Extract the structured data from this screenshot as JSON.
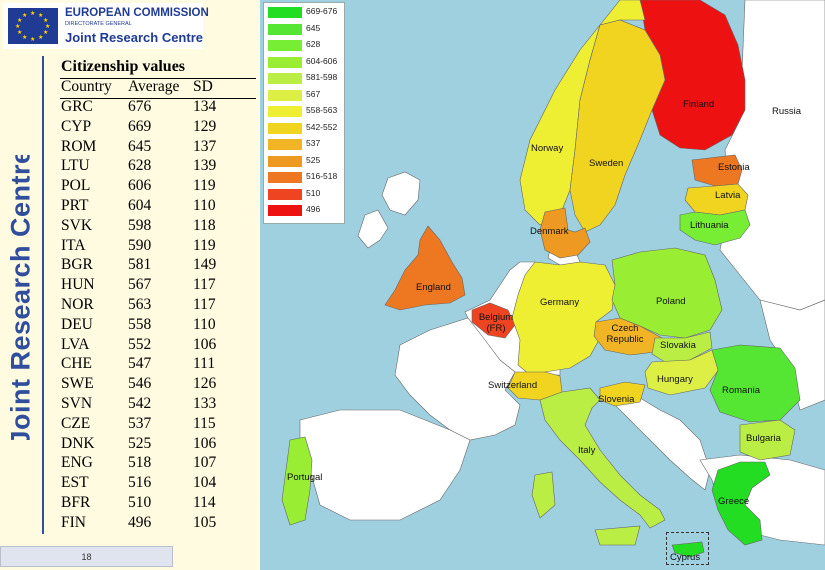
{
  "logo": {
    "organization": "EUROPEAN COMMISSION",
    "subtitle": "DIRECTORATE GENERAL",
    "name": "Joint Research Centre"
  },
  "side_title": "Joint Research Centre",
  "table": {
    "title": "Citizenship values",
    "headers": [
      "Country",
      "Average",
      "SD"
    ],
    "rows": [
      [
        "GRC",
        "676",
        "134"
      ],
      [
        "CYP",
        "669",
        "129"
      ],
      [
        "ROM",
        "645",
        "137"
      ],
      [
        "LTU",
        "628",
        "139"
      ],
      [
        "POL",
        "606",
        "119"
      ],
      [
        "PRT",
        "604",
        "110"
      ],
      [
        "SVK",
        "598",
        "118"
      ],
      [
        "ITA",
        "590",
        "119"
      ],
      [
        "BGR",
        "581",
        "149"
      ],
      [
        "HUN",
        "567",
        "117"
      ],
      [
        "NOR",
        "563",
        "117"
      ],
      [
        "DEU",
        "558",
        "110"
      ],
      [
        "LVA",
        "552",
        "106"
      ],
      [
        "CHE",
        "547",
        "111"
      ],
      [
        "SWE",
        "546",
        "126"
      ],
      [
        "SVN",
        "542",
        "133"
      ],
      [
        "CZE",
        "537",
        "115"
      ],
      [
        "DNK",
        "525",
        "106"
      ],
      [
        "ENG",
        "518",
        "107"
      ],
      [
        "EST",
        "516",
        "104"
      ],
      [
        "BFR",
        "510",
        "114"
      ],
      [
        "FIN",
        "496",
        "105"
      ]
    ]
  },
  "page_number": "18",
  "legend": [
    {
      "label": "669-676",
      "color": "#22dd22"
    },
    {
      "label": "645",
      "color": "#55e633"
    },
    {
      "label": "628",
      "color": "#77ee33"
    },
    {
      "label": "604-606",
      "color": "#99ee33"
    },
    {
      "label": "581-598",
      "color": "#bbee44"
    },
    {
      "label": "567",
      "color": "#ddee44"
    },
    {
      "label": "558-563",
      "color": "#eeee33"
    },
    {
      "label": "542-552",
      "color": "#f0d420"
    },
    {
      "label": "537",
      "color": "#f0b424"
    },
    {
      "label": "525",
      "color": "#ee9922"
    },
    {
      "label": "516-518",
      "color": "#ee7722"
    },
    {
      "label": "510",
      "color": "#ee4422"
    },
    {
      "label": "496",
      "color": "#ee1111"
    }
  ],
  "map_labels": [
    "Finland",
    "Russia",
    "Norway",
    "Sweden",
    "Estonia",
    "Latvia",
    "Lithuania",
    "Denmark",
    "England",
    "Belgium (FR)",
    "Germany",
    "Poland",
    "Czech Republic",
    "Slovakia",
    "Switzerland",
    "Hungary",
    "Romania",
    "Slovenia",
    "Italy",
    "Bulgaria",
    "Portugal",
    "Greece",
    "Cyprus"
  ],
  "colors": {
    "sea": "#9fd0e0",
    "non_participating": "#ffffff",
    "panel_background": "#fffbe0",
    "brand_blue": "#2f4e9e"
  }
}
